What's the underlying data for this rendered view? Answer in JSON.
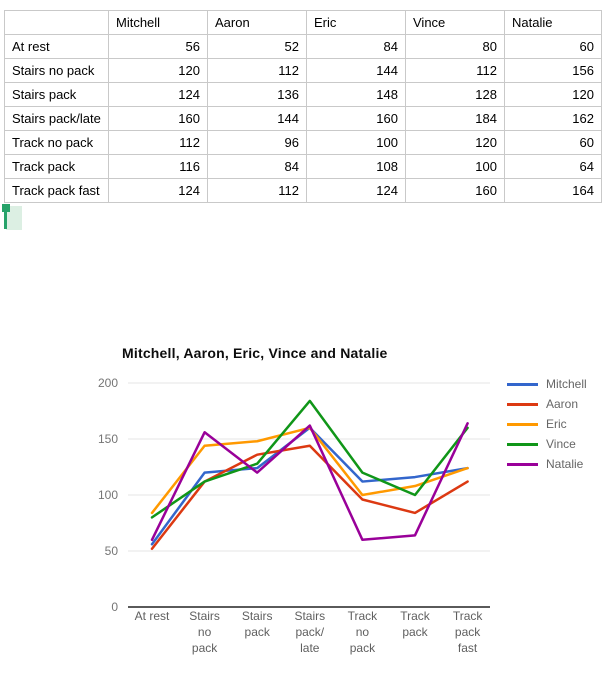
{
  "table": {
    "columns": [
      "",
      "Mitchell",
      "Aaron",
      "Eric",
      "Vince",
      "Natalie"
    ],
    "rows": [
      {
        "label": "At rest",
        "values": [
          56,
          52,
          84,
          80,
          60
        ]
      },
      {
        "label": "Stairs no pack",
        "values": [
          120,
          112,
          144,
          112,
          156
        ]
      },
      {
        "label": "Stairs pack",
        "values": [
          124,
          136,
          148,
          128,
          120
        ]
      },
      {
        "label": "Stairs pack/late",
        "values": [
          160,
          144,
          160,
          184,
          162
        ]
      },
      {
        "label": "Track no pack",
        "values": [
          112,
          96,
          100,
          120,
          60
        ]
      },
      {
        "label": "Track pack",
        "values": [
          116,
          84,
          108,
          100,
          64
        ]
      },
      {
        "label": "Track pack fast",
        "values": [
          124,
          112,
          124,
          160,
          164
        ]
      }
    ]
  },
  "selection_cursor": {
    "handle_color": "#26a269",
    "highlight_color": "#dcefe3"
  },
  "chart_data": {
    "type": "line",
    "title": "Mitchell, Aaron, Eric, Vince and Natalie",
    "categories": [
      "At rest",
      "Stairs no pack",
      "Stairs pack",
      "Stairs pack/late",
      "Track no pack",
      "Track pack",
      "Track pack fast"
    ],
    "tick_lines": [
      [
        "At rest"
      ],
      [
        "Stairs",
        "no",
        "pack"
      ],
      [
        "Stairs",
        "pack"
      ],
      [
        "Stairs",
        "pack/",
        "late"
      ],
      [
        "Track",
        "no",
        "pack"
      ],
      [
        "Track",
        "pack"
      ],
      [
        "Track",
        "pack",
        "fast"
      ]
    ],
    "series": [
      {
        "name": "Mitchell",
        "color": "#3366cc",
        "values": [
          56,
          120,
          124,
          160,
          112,
          116,
          124
        ]
      },
      {
        "name": "Aaron",
        "color": "#dc3912",
        "values": [
          52,
          112,
          136,
          144,
          96,
          84,
          112
        ]
      },
      {
        "name": "Eric",
        "color": "#ff9900",
        "values": [
          84,
          144,
          148,
          160,
          100,
          108,
          124
        ]
      },
      {
        "name": "Vince",
        "color": "#109618",
        "values": [
          80,
          112,
          128,
          184,
          120,
          100,
          160
        ]
      },
      {
        "name": "Natalie",
        "color": "#990099",
        "values": [
          60,
          156,
          120,
          162,
          60,
          64,
          164
        ]
      }
    ],
    "xlabel": "",
    "ylabel": "",
    "ylim": [
      0,
      200
    ],
    "yticks": [
      0,
      50,
      100,
      150,
      200
    ],
    "grid": true,
    "legend_position": "right"
  }
}
